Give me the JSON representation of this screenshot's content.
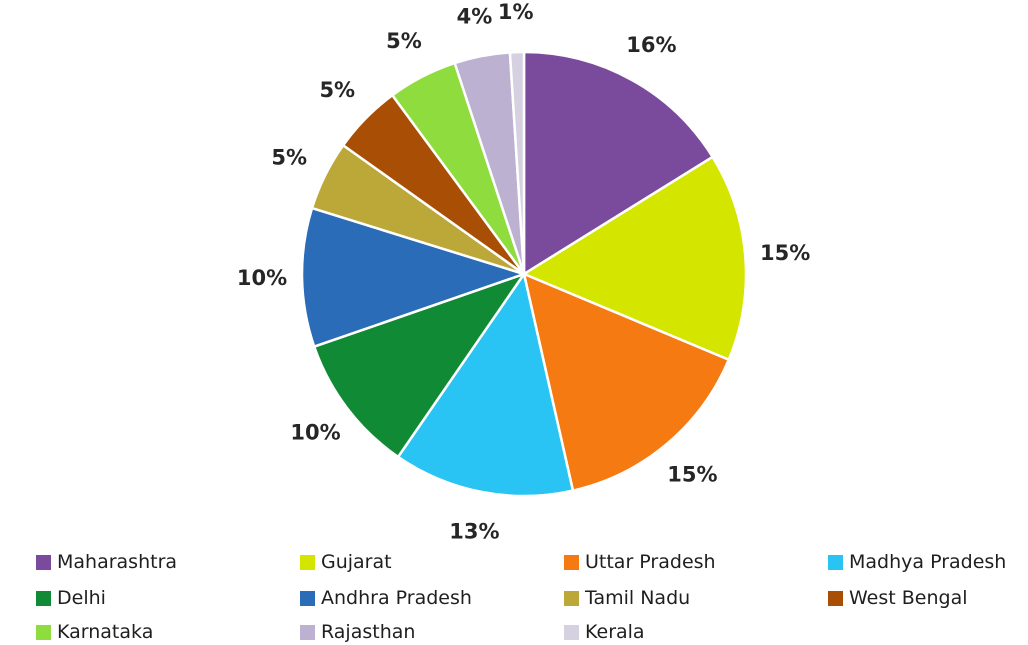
{
  "chart_data": {
    "type": "pie",
    "slices": [
      {
        "label": "Maharashtra",
        "value": 16,
        "value_label": "16%",
        "color": "#7a4a9c"
      },
      {
        "label": "Gujarat",
        "value": 15,
        "value_label": "15%",
        "color": "#d4e600"
      },
      {
        "label": "Uttar Pradesh",
        "value": 15,
        "value_label": "15%",
        "color": "#f57a12"
      },
      {
        "label": "Madhya Pradesh",
        "value": 13,
        "value_label": "13%",
        "color": "#29c4f4"
      },
      {
        "label": "Delhi",
        "value": 10,
        "value_label": "10%",
        "color": "#118a35"
      },
      {
        "label": "Andhra Pradesh",
        "value": 10,
        "value_label": "10%",
        "color": "#2b6cb8"
      },
      {
        "label": "Tamil Nadu",
        "value": 5,
        "value_label": "5%",
        "color": "#bba838"
      },
      {
        "label": "West Bengal",
        "value": 5,
        "value_label": "5%",
        "color": "#a84e05"
      },
      {
        "label": "Karnataka",
        "value": 5,
        "value_label": "5%",
        "color": "#8edc3e"
      },
      {
        "label": "Rajasthan",
        "value": 4,
        "value_label": "4%",
        "color": "#bcb1d1"
      },
      {
        "label": "Kerala",
        "value": 1,
        "value_label": "1%",
        "color": "#d6d1e0"
      }
    ],
    "legend": {
      "placement": "bottom",
      "order": [
        "Maharashtra",
        "Gujarat",
        "Uttar Pradesh",
        "Madhya Pradesh",
        "Delhi",
        "Andhra Pradesh",
        "Tamil Nadu",
        "West Bengal",
        "Karnataka",
        "Rajasthan",
        "Kerala"
      ]
    }
  }
}
